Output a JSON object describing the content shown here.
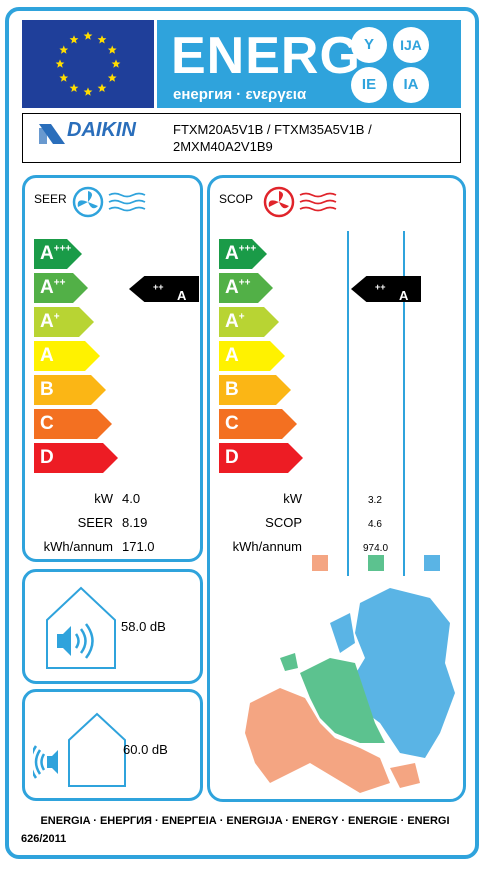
{
  "header": {
    "energy_word": "ENERG",
    "energy_sub": "енергия · ενεργεια",
    "lang_badges": [
      "Y",
      "IJA",
      "IE",
      "IA"
    ]
  },
  "supplier": {
    "brand": "DAIKIN",
    "models_line1": "FTXM20A5V1B / FTXM35A5V1B /",
    "models_line2": "2MXM40A2V1B9"
  },
  "cooling": {
    "title": "SEER",
    "rating": "A",
    "rating_sup": "++",
    "kw_label": "kW",
    "kw_value": "4.0",
    "eff_label": "SEER",
    "eff_value": "8.19",
    "annual_label": "kWh/annum",
    "annual_value": "171.0"
  },
  "heating": {
    "title": "SCOP",
    "rating": "A",
    "rating_sup": "++",
    "kw_label": "kW",
    "kw_value": "3.2",
    "eff_label": "SCOP",
    "eff_value": "4.6",
    "annual_label": "kWh/annum",
    "annual_value": "974.0"
  },
  "scale": [
    {
      "letter": "A",
      "sup": "+++",
      "color": "#1a9b48"
    },
    {
      "letter": "A",
      "sup": "++",
      "color": "#52b047"
    },
    {
      "letter": "A",
      "sup": "+",
      "color": "#b8d433"
    },
    {
      "letter": "A",
      "sup": "",
      "color": "#fff200"
    },
    {
      "letter": "B",
      "sup": "",
      "color": "#fbb615"
    },
    {
      "letter": "C",
      "sup": "",
      "color": "#f37021"
    },
    {
      "letter": "D",
      "sup": "",
      "color": "#ed1c24"
    }
  ],
  "climate_colors": {
    "warmer": "#f4a582",
    "average": "#5cc28f",
    "colder": "#5ab4e5"
  },
  "noise": {
    "indoor_value": "58.0 dB",
    "outdoor_value": "60.0 dB"
  },
  "footer": {
    "languages": "ENERGIA · ЕНЕРГИЯ · ΕΝΕΡΓΕΙΑ · ENERGIJA · ENERGY · ENERGIE · ENERGI",
    "regulation": "626/2011"
  }
}
